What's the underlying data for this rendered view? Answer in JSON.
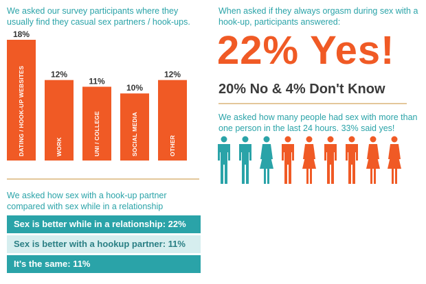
{
  "colors": {
    "orange": "#f05a25",
    "teal": "#2aa3a8",
    "teal_light": "#d6eeef",
    "dark_text": "#3a3a3a"
  },
  "q1_text": "We asked our survey participants where they usually find they casual sex partners / hook-ups.",
  "chart_data": {
    "type": "bar",
    "categories": [
      "DATING / HOOK-UP WEBSITES",
      "WORK",
      "UNI / COLLEGE",
      "SOCIAL MEDIA",
      "OTHER"
    ],
    "values": [
      18,
      12,
      11,
      10,
      12
    ],
    "value_labels": [
      "18%",
      "12%",
      "11%",
      "10%",
      "12%"
    ],
    "ylim": [
      0,
      18
    ],
    "grid": false
  },
  "q2_text": "When asked if they always orgasm during sex with a hook-up, participants answered:",
  "big_yes": "22% Yes!",
  "no_line": "20% No & 4% Don't Know",
  "q3_text": "We asked how many people had sex with more than one person in the last 24 hours. 33% said yes!",
  "people": {
    "figures": [
      "male",
      "male",
      "female",
      "male",
      "female",
      "male",
      "male",
      "female",
      "female"
    ],
    "highlight_colors": [
      "teal",
      "teal",
      "teal",
      "orange",
      "orange",
      "orange",
      "orange",
      "orange",
      "orange"
    ]
  },
  "q4_text": "We asked how sex with a hook-up partner compared with sex while in a relationship",
  "comparison": [
    {
      "label": "Sex is better while in a relationship: 22%",
      "style": "dark"
    },
    {
      "label": "Sex is better with a hookup partner: 11%",
      "style": "light"
    },
    {
      "label": "It's the same: 11%",
      "style": "dark"
    }
  ]
}
